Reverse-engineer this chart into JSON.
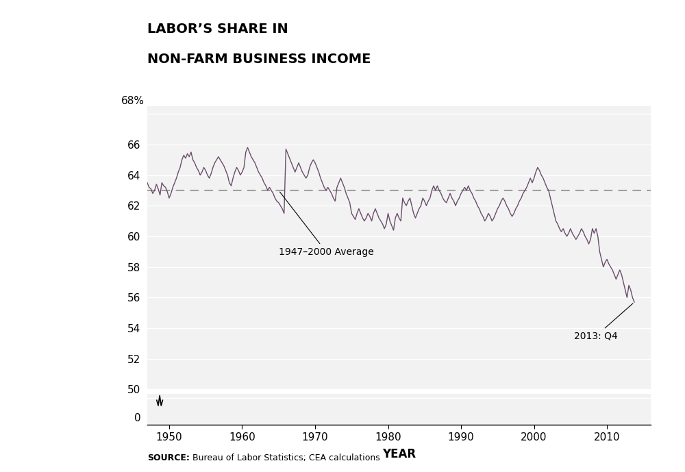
{
  "title_line1": "LABOR’S SHARE IN",
  "title_line2": "NON-FARM BUSINESS INCOME",
  "xlabel": "YEAR",
  "source_text": "Bureau of Labor Statistics; CEA calculations",
  "source_bold": "SOURCE:",
  "avg_label": "1947–2000 Average",
  "avg_value": 63.0,
  "annotation_label": "2013: Q4",
  "annotation_value": 55.7,
  "annotation_year": 2013.75,
  "line_color": "#6b4c6b",
  "avg_line_color": "#a0a0a0",
  "bg_color": "#e8e8e8",
  "xlim": [
    1947,
    2016
  ],
  "xticks": [
    1950,
    1960,
    1970,
    1980,
    1990,
    2000,
    2010
  ],
  "data": [
    [
      1947.0,
      63.5
    ],
    [
      1947.25,
      63.2
    ],
    [
      1947.5,
      63.1
    ],
    [
      1947.75,
      62.8
    ],
    [
      1948.0,
      63.0
    ],
    [
      1948.25,
      63.4
    ],
    [
      1948.5,
      63.1
    ],
    [
      1948.75,
      62.7
    ],
    [
      1949.0,
      63.5
    ],
    [
      1949.25,
      63.3
    ],
    [
      1949.5,
      63.2
    ],
    [
      1949.75,
      62.9
    ],
    [
      1950.0,
      62.5
    ],
    [
      1950.25,
      62.8
    ],
    [
      1950.5,
      63.2
    ],
    [
      1950.75,
      63.5
    ],
    [
      1951.0,
      63.8
    ],
    [
      1951.25,
      64.2
    ],
    [
      1951.5,
      64.5
    ],
    [
      1951.75,
      65.0
    ],
    [
      1952.0,
      65.3
    ],
    [
      1952.25,
      65.1
    ],
    [
      1952.5,
      65.4
    ],
    [
      1952.75,
      65.2
    ],
    [
      1953.0,
      65.5
    ],
    [
      1953.25,
      65.0
    ],
    [
      1953.5,
      64.8
    ],
    [
      1953.75,
      64.5
    ],
    [
      1954.0,
      64.3
    ],
    [
      1954.25,
      64.0
    ],
    [
      1954.5,
      64.2
    ],
    [
      1954.75,
      64.5
    ],
    [
      1955.0,
      64.3
    ],
    [
      1955.25,
      64.0
    ],
    [
      1955.5,
      63.8
    ],
    [
      1955.75,
      64.1
    ],
    [
      1956.0,
      64.5
    ],
    [
      1956.25,
      64.8
    ],
    [
      1956.5,
      65.0
    ],
    [
      1956.75,
      65.2
    ],
    [
      1957.0,
      65.0
    ],
    [
      1957.25,
      64.8
    ],
    [
      1957.5,
      64.6
    ],
    [
      1957.75,
      64.3
    ],
    [
      1958.0,
      64.0
    ],
    [
      1958.25,
      63.5
    ],
    [
      1958.5,
      63.3
    ],
    [
      1958.75,
      63.8
    ],
    [
      1959.0,
      64.2
    ],
    [
      1959.25,
      64.5
    ],
    [
      1959.5,
      64.3
    ],
    [
      1959.75,
      64.0
    ],
    [
      1960.0,
      64.2
    ],
    [
      1960.25,
      64.5
    ],
    [
      1960.5,
      65.5
    ],
    [
      1960.75,
      65.8
    ],
    [
      1961.0,
      65.5
    ],
    [
      1961.25,
      65.2
    ],
    [
      1961.5,
      65.0
    ],
    [
      1961.75,
      64.8
    ],
    [
      1962.0,
      64.5
    ],
    [
      1962.25,
      64.2
    ],
    [
      1962.5,
      64.0
    ],
    [
      1962.75,
      63.8
    ],
    [
      1963.0,
      63.5
    ],
    [
      1963.25,
      63.3
    ],
    [
      1963.5,
      63.0
    ],
    [
      1963.75,
      63.2
    ],
    [
      1964.0,
      63.0
    ],
    [
      1964.25,
      62.8
    ],
    [
      1964.5,
      62.5
    ],
    [
      1964.75,
      62.3
    ],
    [
      1965.0,
      62.2
    ],
    [
      1965.25,
      62.0
    ],
    [
      1965.5,
      61.8
    ],
    [
      1965.75,
      61.5
    ],
    [
      1966.0,
      65.7
    ],
    [
      1966.25,
      65.4
    ],
    [
      1966.5,
      65.1
    ],
    [
      1966.75,
      64.8
    ],
    [
      1967.0,
      64.5
    ],
    [
      1967.25,
      64.2
    ],
    [
      1967.5,
      64.5
    ],
    [
      1967.75,
      64.8
    ],
    [
      1968.0,
      64.5
    ],
    [
      1968.25,
      64.2
    ],
    [
      1968.5,
      64.0
    ],
    [
      1968.75,
      63.8
    ],
    [
      1969.0,
      64.0
    ],
    [
      1969.25,
      64.5
    ],
    [
      1969.5,
      64.8
    ],
    [
      1969.75,
      65.0
    ],
    [
      1970.0,
      64.8
    ],
    [
      1970.25,
      64.5
    ],
    [
      1970.5,
      64.2
    ],
    [
      1970.75,
      63.8
    ],
    [
      1971.0,
      63.5
    ],
    [
      1971.25,
      63.2
    ],
    [
      1971.5,
      63.0
    ],
    [
      1971.75,
      63.2
    ],
    [
      1972.0,
      63.0
    ],
    [
      1972.25,
      62.8
    ],
    [
      1972.5,
      62.5
    ],
    [
      1972.75,
      62.3
    ],
    [
      1973.0,
      63.2
    ],
    [
      1973.25,
      63.5
    ],
    [
      1973.5,
      63.8
    ],
    [
      1973.75,
      63.5
    ],
    [
      1974.0,
      63.2
    ],
    [
      1974.25,
      62.8
    ],
    [
      1974.5,
      62.5
    ],
    [
      1974.75,
      62.2
    ],
    [
      1975.0,
      61.5
    ],
    [
      1975.25,
      61.3
    ],
    [
      1975.5,
      61.1
    ],
    [
      1975.75,
      61.5
    ],
    [
      1976.0,
      61.8
    ],
    [
      1976.25,
      61.5
    ],
    [
      1976.5,
      61.2
    ],
    [
      1976.75,
      61.0
    ],
    [
      1977.0,
      61.2
    ],
    [
      1977.25,
      61.5
    ],
    [
      1977.5,
      61.3
    ],
    [
      1977.75,
      61.0
    ],
    [
      1978.0,
      61.5
    ],
    [
      1978.25,
      61.8
    ],
    [
      1978.5,
      61.5
    ],
    [
      1978.75,
      61.2
    ],
    [
      1979.0,
      61.0
    ],
    [
      1979.25,
      60.8
    ],
    [
      1979.5,
      60.5
    ],
    [
      1979.75,
      60.8
    ],
    [
      1980.0,
      61.5
    ],
    [
      1980.25,
      61.0
    ],
    [
      1980.5,
      60.7
    ],
    [
      1980.75,
      60.4
    ],
    [
      1981.0,
      61.2
    ],
    [
      1981.25,
      61.5
    ],
    [
      1981.5,
      61.2
    ],
    [
      1981.75,
      61.0
    ],
    [
      1982.0,
      62.5
    ],
    [
      1982.25,
      62.2
    ],
    [
      1982.5,
      62.0
    ],
    [
      1982.75,
      62.3
    ],
    [
      1983.0,
      62.5
    ],
    [
      1983.25,
      62.0
    ],
    [
      1983.5,
      61.5
    ],
    [
      1983.75,
      61.2
    ],
    [
      1984.0,
      61.5
    ],
    [
      1984.25,
      61.8
    ],
    [
      1984.5,
      62.0
    ],
    [
      1984.75,
      62.5
    ],
    [
      1985.0,
      62.3
    ],
    [
      1985.25,
      62.0
    ],
    [
      1985.5,
      62.3
    ],
    [
      1985.75,
      62.5
    ],
    [
      1986.0,
      63.0
    ],
    [
      1986.25,
      63.3
    ],
    [
      1986.5,
      63.0
    ],
    [
      1986.75,
      63.3
    ],
    [
      1987.0,
      63.0
    ],
    [
      1987.25,
      62.8
    ],
    [
      1987.5,
      62.5
    ],
    [
      1987.75,
      62.3
    ],
    [
      1988.0,
      62.2
    ],
    [
      1988.25,
      62.5
    ],
    [
      1988.5,
      62.8
    ],
    [
      1988.75,
      62.5
    ],
    [
      1989.0,
      62.3
    ],
    [
      1989.25,
      62.0
    ],
    [
      1989.5,
      62.3
    ],
    [
      1989.75,
      62.5
    ],
    [
      1990.0,
      62.8
    ],
    [
      1990.25,
      63.0
    ],
    [
      1990.5,
      63.2
    ],
    [
      1990.75,
      63.0
    ],
    [
      1991.0,
      63.3
    ],
    [
      1991.25,
      63.0
    ],
    [
      1991.5,
      62.8
    ],
    [
      1991.75,
      62.5
    ],
    [
      1992.0,
      62.3
    ],
    [
      1992.25,
      62.0
    ],
    [
      1992.5,
      61.8
    ],
    [
      1992.75,
      61.5
    ],
    [
      1993.0,
      61.3
    ],
    [
      1993.25,
      61.0
    ],
    [
      1993.5,
      61.2
    ],
    [
      1993.75,
      61.5
    ],
    [
      1994.0,
      61.3
    ],
    [
      1994.25,
      61.0
    ],
    [
      1994.5,
      61.2
    ],
    [
      1994.75,
      61.5
    ],
    [
      1995.0,
      61.8
    ],
    [
      1995.25,
      62.0
    ],
    [
      1995.5,
      62.3
    ],
    [
      1995.75,
      62.5
    ],
    [
      1996.0,
      62.3
    ],
    [
      1996.25,
      62.0
    ],
    [
      1996.5,
      61.8
    ],
    [
      1996.75,
      61.5
    ],
    [
      1997.0,
      61.3
    ],
    [
      1997.25,
      61.5
    ],
    [
      1997.5,
      61.8
    ],
    [
      1997.75,
      62.0
    ],
    [
      1998.0,
      62.3
    ],
    [
      1998.25,
      62.5
    ],
    [
      1998.5,
      62.8
    ],
    [
      1998.75,
      63.0
    ],
    [
      1999.0,
      63.2
    ],
    [
      1999.25,
      63.5
    ],
    [
      1999.5,
      63.8
    ],
    [
      1999.75,
      63.5
    ],
    [
      2000.0,
      63.8
    ],
    [
      2000.25,
      64.2
    ],
    [
      2000.5,
      64.5
    ],
    [
      2000.75,
      64.3
    ],
    [
      2001.0,
      64.0
    ],
    [
      2001.25,
      63.8
    ],
    [
      2001.5,
      63.5
    ],
    [
      2001.75,
      63.2
    ],
    [
      2002.0,
      63.0
    ],
    [
      2002.25,
      62.5
    ],
    [
      2002.5,
      62.0
    ],
    [
      2002.75,
      61.5
    ],
    [
      2003.0,
      61.0
    ],
    [
      2003.25,
      60.8
    ],
    [
      2003.5,
      60.5
    ],
    [
      2003.75,
      60.3
    ],
    [
      2004.0,
      60.5
    ],
    [
      2004.25,
      60.2
    ],
    [
      2004.5,
      60.0
    ],
    [
      2004.75,
      60.2
    ],
    [
      2005.0,
      60.5
    ],
    [
      2005.25,
      60.2
    ],
    [
      2005.5,
      60.0
    ],
    [
      2005.75,
      59.8
    ],
    [
      2006.0,
      60.0
    ],
    [
      2006.25,
      60.2
    ],
    [
      2006.5,
      60.5
    ],
    [
      2006.75,
      60.3
    ],
    [
      2007.0,
      60.0
    ],
    [
      2007.25,
      59.8
    ],
    [
      2007.5,
      59.5
    ],
    [
      2007.75,
      59.8
    ],
    [
      2008.0,
      60.5
    ],
    [
      2008.25,
      60.2
    ],
    [
      2008.5,
      60.5
    ],
    [
      2008.75,
      60.0
    ],
    [
      2009.0,
      59.0
    ],
    [
      2009.25,
      58.5
    ],
    [
      2009.5,
      58.0
    ],
    [
      2009.75,
      58.3
    ],
    [
      2010.0,
      58.5
    ],
    [
      2010.25,
      58.2
    ],
    [
      2010.5,
      58.0
    ],
    [
      2010.75,
      57.8
    ],
    [
      2011.0,
      57.5
    ],
    [
      2011.25,
      57.2
    ],
    [
      2011.5,
      57.5
    ],
    [
      2011.75,
      57.8
    ],
    [
      2012.0,
      57.5
    ],
    [
      2012.25,
      57.0
    ],
    [
      2012.5,
      56.5
    ],
    [
      2012.75,
      56.0
    ],
    [
      2013.0,
      56.8
    ],
    [
      2013.25,
      56.5
    ],
    [
      2013.5,
      56.0
    ],
    [
      2013.75,
      55.7
    ]
  ]
}
